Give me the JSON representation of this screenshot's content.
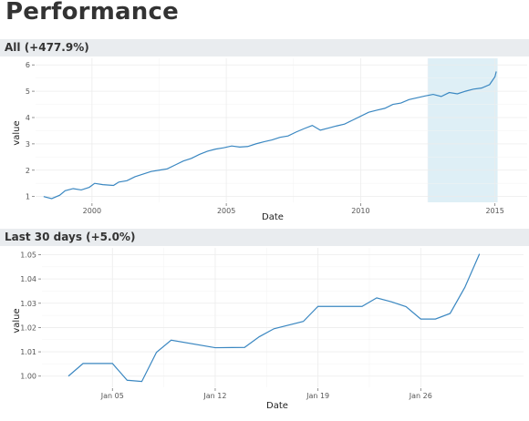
{
  "page": {
    "title": "Performance"
  },
  "chart_data": [
    {
      "type": "line",
      "header": "All (+477.9%)",
      "xlabel": "Date",
      "ylabel": "value",
      "x_tick_labels": [
        "2000",
        "2005",
        "2010",
        "2015"
      ],
      "x_tick_values": [
        2000,
        2005,
        2010,
        2015
      ],
      "y_tick_labels": [
        "1",
        "2",
        "3",
        "4",
        "5",
        "6"
      ],
      "y_tick_values": [
        1,
        2,
        3,
        4,
        5,
        6
      ],
      "xlim": [
        1997.9,
        2016.2
      ],
      "ylim": [
        0.78,
        6.25
      ],
      "highlight_range": {
        "x": [
          2012.5,
          2015.1
        ],
        "color": "#deeff6"
      },
      "line_color": "#3a87c1",
      "grid": true,
      "series": [
        {
          "x": [
            1998.2,
            1998.5,
            1998.8,
            1999.0,
            1999.3,
            1999.6,
            1999.9,
            2000.1,
            2000.4,
            2000.8,
            2001.0,
            2001.3,
            2001.6,
            2001.9,
            2002.2,
            2002.5,
            2002.8,
            2003.1,
            2003.4,
            2003.7,
            2004.0,
            2004.3,
            2004.6,
            2004.9,
            2005.2,
            2005.5,
            2005.8,
            2006.1,
            2006.4,
            2006.7,
            2007.0,
            2007.3,
            2007.6,
            2007.9,
            2008.2,
            2008.5,
            2008.8,
            2009.1,
            2009.4,
            2009.7,
            2010.0,
            2010.3,
            2010.6,
            2010.9,
            2011.2,
            2011.5,
            2011.8,
            2012.1,
            2012.4,
            2012.7,
            2013.0,
            2013.3,
            2013.6,
            2013.9,
            2014.2,
            2014.5,
            2014.8,
            2015.0,
            2015.05
          ],
          "y": [
            1.0,
            0.92,
            1.05,
            1.22,
            1.3,
            1.25,
            1.35,
            1.5,
            1.45,
            1.42,
            1.55,
            1.6,
            1.75,
            1.85,
            1.95,
            2.0,
            2.05,
            2.2,
            2.35,
            2.45,
            2.6,
            2.72,
            2.8,
            2.85,
            2.92,
            2.88,
            2.9,
            3.0,
            3.08,
            3.15,
            3.25,
            3.3,
            3.45,
            3.58,
            3.7,
            3.52,
            3.6,
            3.68,
            3.75,
            3.9,
            4.05,
            4.2,
            4.28,
            4.35,
            4.5,
            4.55,
            4.68,
            4.75,
            4.82,
            4.88,
            4.8,
            4.95,
            4.9,
            5.0,
            5.08,
            5.12,
            5.25,
            5.55,
            5.75
          ]
        }
      ]
    },
    {
      "type": "line",
      "header": "Last 30 days (+5.0%)",
      "xlabel": "Date",
      "ylabel": "value",
      "x_tick_labels": [
        "Jan 05",
        "Jan 12",
        "Jan 19",
        "Jan 26"
      ],
      "x_tick_values": [
        5,
        12,
        19,
        26
      ],
      "y_tick_labels": [
        "1.00",
        "1.01",
        "1.02",
        "1.03",
        "1.04",
        "1.05"
      ],
      "y_tick_values": [
        1.0,
        1.01,
        1.02,
        1.03,
        1.04,
        1.05
      ],
      "xlim": [
        0.2,
        33.0
      ],
      "ylim": [
        0.9954,
        1.0528
      ],
      "line_color": "#3a87c1",
      "grid": true,
      "series": [
        {
          "x": [
            2,
            3,
            5,
            6,
            7,
            8,
            9,
            12,
            14,
            15,
            16,
            18,
            19,
            22,
            23,
            24,
            25,
            26,
            27,
            28,
            29,
            30
          ],
          "y": [
            1.0,
            1.0052,
            1.0052,
            0.9983,
            0.9978,
            1.0098,
            1.0148,
            1.0117,
            1.0118,
            1.0162,
            1.0195,
            1.0225,
            1.0287,
            1.0287,
            1.0322,
            1.0306,
            1.0286,
            1.0235,
            1.0235,
            1.0258,
            1.0365,
            1.0503
          ]
        }
      ]
    }
  ]
}
